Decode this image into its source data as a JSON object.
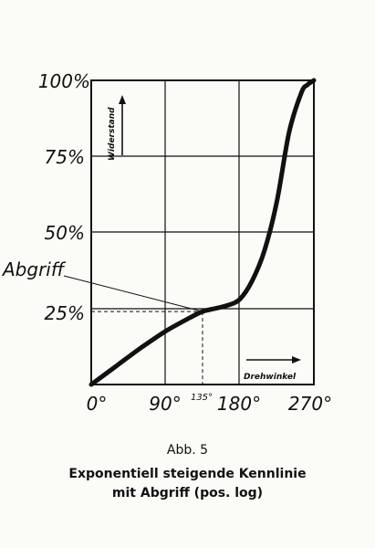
{
  "chart_data": {
    "type": "line",
    "x_ticks": [
      "0°",
      "90°",
      "180°",
      "270°"
    ],
    "y_ticks": [
      "100%",
      "75%",
      "50%",
      "25%"
    ],
    "axis_arrow_y_label": "Widerstand",
    "axis_arrow_x_label": "Drehwinkel",
    "tap_label": "Abgriff",
    "tap_x_label": "135°",
    "xlim": [
      0,
      270
    ],
    "ylim": [
      0,
      100
    ],
    "grid": true,
    "tap_point": {
      "x": 135,
      "y": 24
    },
    "series": [
      {
        "x": [
          0,
          30,
          60,
          90,
          120,
          135,
          150,
          165,
          180,
          195,
          210,
          225,
          240,
          255,
          262,
          270
        ],
        "y": [
          0,
          6,
          12,
          17.5,
          22,
          24,
          25,
          26,
          28,
          34,
          44,
          60,
          83,
          96,
          98.5,
          100
        ]
      }
    ]
  },
  "caption": {
    "line1": "Abb. 5",
    "line2": "Exponentiell steigende Kennlinie",
    "line3": "mit Abgriff (pos. log)"
  }
}
